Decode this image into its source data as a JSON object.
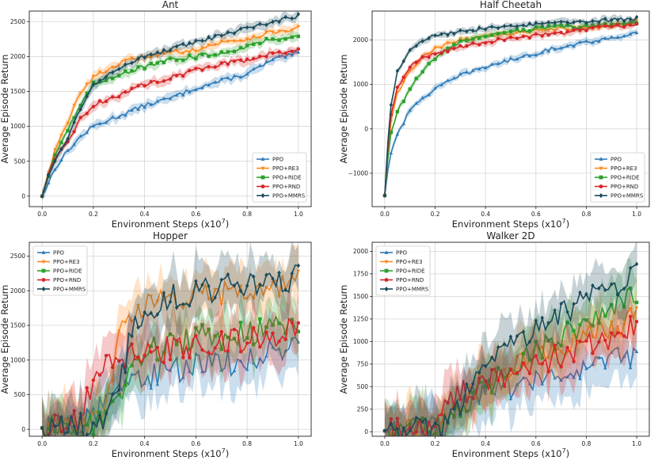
{
  "colors": {
    "PPO": "#2f7bb8",
    "PPO+RE3": "#ff8a1f",
    "PPO+RIDE": "#2ca02c",
    "PPO+RND": "#d62728",
    "PPO+MMRS": "#1b4b5a"
  },
  "markers": {
    "PPO": "triangle",
    "PPO+RE3": "triangle-down",
    "PPO+RIDE": "square",
    "PPO+RND": "circle",
    "PPO+MMRS": "diamond"
  },
  "xlabel_main": "Environment Steps (x10",
  "xlabel_exp": "7",
  "xlabel_close": ")",
  "ylabel": "Average Episode Return",
  "chart_data": [
    {
      "type": "line",
      "title": "Ant",
      "xlim": [
        -0.05,
        1.05
      ],
      "ylim": [
        -150,
        2650
      ],
      "xticks": [
        0.0,
        0.2,
        0.4,
        0.6,
        0.8,
        1.0
      ],
      "xtick_labels": [
        "0.0",
        "0.2",
        "0.4",
        "0.6",
        "0.8",
        "1.0"
      ],
      "yticks": [
        0,
        500,
        1000,
        1500,
        2000,
        2500
      ],
      "ytick_labels": [
        "0",
        "500",
        "1000",
        "1500",
        "2000",
        "2500"
      ],
      "legend": "bottom-right",
      "noise": 30,
      "band": 60,
      "series": [
        {
          "name": "PPO",
          "x": [
            0,
            0.02,
            0.05,
            0.1,
            0.15,
            0.2,
            0.3,
            0.4,
            0.5,
            0.6,
            0.7,
            0.8,
            0.9,
            1.0
          ],
          "y": [
            0,
            150,
            400,
            650,
            850,
            1000,
            1150,
            1300,
            1400,
            1550,
            1650,
            1750,
            1950,
            2050
          ]
        },
        {
          "name": "PPO+RE3",
          "x": [
            0,
            0.02,
            0.05,
            0.1,
            0.15,
            0.2,
            0.3,
            0.4,
            0.5,
            0.6,
            0.7,
            0.8,
            0.9,
            1.0
          ],
          "y": [
            0,
            300,
            650,
            1050,
            1500,
            1700,
            1900,
            2000,
            2050,
            2100,
            2200,
            2250,
            2350,
            2400
          ]
        },
        {
          "name": "PPO+RIDE",
          "x": [
            0,
            0.02,
            0.05,
            0.1,
            0.15,
            0.2,
            0.3,
            0.4,
            0.5,
            0.6,
            0.7,
            0.8,
            0.9,
            1.0
          ],
          "y": [
            0,
            250,
            600,
            950,
            1300,
            1600,
            1750,
            1850,
            1950,
            2000,
            2050,
            2150,
            2250,
            2300
          ]
        },
        {
          "name": "PPO+RND",
          "x": [
            0,
            0.02,
            0.05,
            0.1,
            0.15,
            0.2,
            0.3,
            0.4,
            0.5,
            0.6,
            0.7,
            0.8,
            0.9,
            1.0
          ],
          "y": [
            0,
            250,
            500,
            800,
            1100,
            1300,
            1450,
            1600,
            1700,
            1800,
            1900,
            1950,
            2050,
            2100
          ]
        },
        {
          "name": "PPO+MMRS",
          "x": [
            0,
            0.02,
            0.05,
            0.1,
            0.15,
            0.2,
            0.3,
            0.4,
            0.5,
            0.6,
            0.7,
            0.8,
            0.9,
            1.0
          ],
          "y": [
            0,
            250,
            500,
            850,
            1250,
            1600,
            1850,
            2000,
            2100,
            2200,
            2300,
            2400,
            2500,
            2580
          ]
        }
      ]
    },
    {
      "type": "line",
      "title": "Half Cheetah",
      "xlim": [
        -0.05,
        1.05
      ],
      "ylim": [
        -1750,
        2650
      ],
      "xticks": [
        0.0,
        0.2,
        0.4,
        0.6,
        0.8,
        1.0
      ],
      "xtick_labels": [
        "0.0",
        "0.2",
        "0.4",
        "0.6",
        "0.8",
        "1.0"
      ],
      "yticks": [
        -1000,
        0,
        1000,
        2000
      ],
      "ytick_labels": [
        "−1000",
        "0",
        "1000",
        "2000"
      ],
      "legend": "bottom-right",
      "noise": 40,
      "band": 70,
      "series": [
        {
          "name": "PPO",
          "x": [
            0,
            0.02,
            0.05,
            0.1,
            0.15,
            0.2,
            0.3,
            0.4,
            0.5,
            0.6,
            0.7,
            0.8,
            0.9,
            1.0
          ],
          "y": [
            -1500,
            -600,
            -100,
            400,
            700,
            900,
            1200,
            1400,
            1550,
            1700,
            1850,
            1950,
            2050,
            2150
          ]
        },
        {
          "name": "PPO+RE3",
          "x": [
            0,
            0.02,
            0.05,
            0.1,
            0.15,
            0.2,
            0.3,
            0.4,
            0.5,
            0.6,
            0.7,
            0.8,
            0.9,
            1.0
          ],
          "y": [
            -1500,
            0,
            800,
            1300,
            1600,
            1800,
            2000,
            2100,
            2150,
            2200,
            2250,
            2250,
            2300,
            2400
          ]
        },
        {
          "name": "PPO+RIDE",
          "x": [
            0,
            0.02,
            0.05,
            0.1,
            0.15,
            0.2,
            0.3,
            0.4,
            0.5,
            0.6,
            0.7,
            0.8,
            0.9,
            1.0
          ],
          "y": [
            -1500,
            -200,
            400,
            900,
            1300,
            1600,
            1950,
            2100,
            2200,
            2250,
            2300,
            2300,
            2350,
            2400
          ]
        },
        {
          "name": "PPO+RND",
          "x": [
            0,
            0.02,
            0.05,
            0.1,
            0.15,
            0.2,
            0.3,
            0.4,
            0.5,
            0.6,
            0.7,
            0.8,
            0.9,
            1.0
          ],
          "y": [
            -1500,
            200,
            900,
            1400,
            1600,
            1700,
            1850,
            1950,
            2050,
            2100,
            2150,
            2250,
            2300,
            2350
          ]
        },
        {
          "name": "PPO+MMRS",
          "x": [
            0,
            0.02,
            0.05,
            0.1,
            0.15,
            0.2,
            0.3,
            0.4,
            0.5,
            0.6,
            0.7,
            0.8,
            0.9,
            1.0
          ],
          "y": [
            -1500,
            400,
            1300,
            1800,
            2000,
            2100,
            2200,
            2250,
            2300,
            2350,
            2400,
            2420,
            2450,
            2480
          ]
        }
      ]
    },
    {
      "type": "line",
      "title": "Hopper",
      "xlim": [
        -0.05,
        1.05
      ],
      "ylim": [
        -100,
        2700
      ],
      "xticks": [
        0.0,
        0.2,
        0.4,
        0.6,
        0.8,
        1.0
      ],
      "xtick_labels": [
        "0.0",
        "0.2",
        "0.4",
        "0.6",
        "0.8",
        "1.0"
      ],
      "yticks": [
        0,
        500,
        1000,
        1500,
        2000,
        2500
      ],
      "ytick_labels": [
        "0",
        "500",
        "1000",
        "1500",
        "2000",
        "2500"
      ],
      "legend": "top-left",
      "noise": 200,
      "band": 350,
      "series": [
        {
          "name": "PPO",
          "x": [
            0,
            0.1,
            0.15,
            0.2,
            0.25,
            0.3,
            0.35,
            0.4,
            0.5,
            0.6,
            0.7,
            0.8,
            0.9,
            1.0
          ],
          "y": [
            20,
            30,
            60,
            200,
            400,
            600,
            700,
            750,
            850,
            900,
            950,
            1000,
            1100,
            1200
          ]
        },
        {
          "name": "PPO+RE3",
          "x": [
            0,
            0.1,
            0.15,
            0.2,
            0.25,
            0.3,
            0.35,
            0.4,
            0.5,
            0.6,
            0.7,
            0.8,
            0.9,
            1.0
          ],
          "y": [
            20,
            30,
            40,
            50,
            300,
            1400,
            1700,
            1750,
            1850,
            1900,
            1950,
            2000,
            2050,
            2100
          ]
        },
        {
          "name": "PPO+RIDE",
          "x": [
            0,
            0.1,
            0.15,
            0.2,
            0.25,
            0.3,
            0.35,
            0.4,
            0.5,
            0.6,
            0.7,
            0.8,
            0.9,
            1.0
          ],
          "y": [
            20,
            30,
            40,
            50,
            150,
            500,
            900,
            1100,
            1200,
            1300,
            1350,
            1400,
            1450,
            1500
          ]
        },
        {
          "name": "PPO+RND",
          "x": [
            0,
            0.1,
            0.15,
            0.2,
            0.25,
            0.3,
            0.35,
            0.4,
            0.5,
            0.6,
            0.7,
            0.8,
            0.9,
            1.0
          ],
          "y": [
            20,
            30,
            150,
            750,
            950,
            1000,
            1050,
            1100,
            1150,
            1200,
            1250,
            1300,
            1350,
            1500
          ]
        },
        {
          "name": "PPO+MMRS",
          "x": [
            0,
            0.1,
            0.15,
            0.2,
            0.25,
            0.3,
            0.35,
            0.4,
            0.5,
            0.6,
            0.7,
            0.8,
            0.9,
            1.0
          ],
          "y": [
            20,
            30,
            40,
            50,
            100,
            600,
            1400,
            1700,
            1900,
            2000,
            2050,
            2100,
            2150,
            2200
          ]
        }
      ]
    },
    {
      "type": "line",
      "title": "Walker 2D",
      "xlim": [
        -0.05,
        1.05
      ],
      "ylim": [
        -50,
        2100
      ],
      "xticks": [
        0.0,
        0.2,
        0.4,
        0.6,
        0.8,
        1.0
      ],
      "xtick_labels": [
        "0.0",
        "0.2",
        "0.4",
        "0.6",
        "0.8",
        "1.0"
      ],
      "yticks": [
        0,
        250,
        500,
        750,
        1000,
        1250,
        1500,
        1750,
        2000
      ],
      "ytick_labels": [
        "0",
        "250",
        "500",
        "750",
        "1000",
        "1250",
        "1500",
        "1750",
        "2000"
      ],
      "legend": "top-left",
      "noise": 140,
      "band": 260,
      "series": [
        {
          "name": "PPO",
          "x": [
            0,
            0.1,
            0.2,
            0.25,
            0.3,
            0.35,
            0.4,
            0.5,
            0.6,
            0.7,
            0.8,
            0.9,
            1.0
          ],
          "y": [
            10,
            20,
            40,
            100,
            300,
            400,
            450,
            500,
            550,
            600,
            700,
            800,
            850
          ]
        },
        {
          "name": "PPO+RE3",
          "x": [
            0,
            0.1,
            0.2,
            0.25,
            0.3,
            0.35,
            0.4,
            0.5,
            0.6,
            0.7,
            0.8,
            0.9,
            1.0
          ],
          "y": [
            10,
            20,
            40,
            100,
            300,
            450,
            550,
            700,
            850,
            950,
            1050,
            1150,
            1250
          ]
        },
        {
          "name": "PPO+RIDE",
          "x": [
            0,
            0.1,
            0.2,
            0.25,
            0.3,
            0.35,
            0.4,
            0.5,
            0.6,
            0.7,
            0.8,
            0.9,
            1.0
          ],
          "y": [
            10,
            20,
            40,
            80,
            250,
            400,
            500,
            700,
            900,
            1050,
            1200,
            1350,
            1500
          ]
        },
        {
          "name": "PPO+RND",
          "x": [
            0,
            0.1,
            0.2,
            0.25,
            0.3,
            0.35,
            0.4,
            0.5,
            0.6,
            0.7,
            0.8,
            0.9,
            1.0
          ],
          "y": [
            10,
            20,
            60,
            300,
            450,
            500,
            550,
            650,
            750,
            850,
            950,
            1050,
            1200
          ]
        },
        {
          "name": "PPO+MMRS",
          "x": [
            0,
            0.1,
            0.2,
            0.25,
            0.3,
            0.35,
            0.4,
            0.5,
            0.6,
            0.7,
            0.8,
            0.9,
            1.0
          ],
          "y": [
            10,
            20,
            40,
            80,
            300,
            550,
            700,
            950,
            1150,
            1300,
            1450,
            1600,
            1750
          ]
        }
      ]
    }
  ]
}
